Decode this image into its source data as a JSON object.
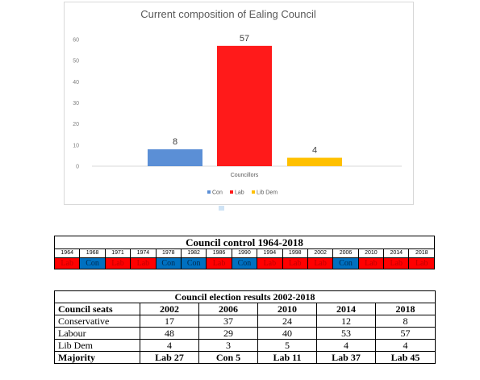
{
  "chart_data": {
    "type": "bar",
    "title": "Current composition of Ealing Council",
    "xlabel": "Councillors",
    "ylim": [
      0,
      60
    ],
    "yticks": [
      0,
      10,
      20,
      30,
      40,
      50,
      60
    ],
    "series": [
      {
        "name": "Con",
        "value": 8,
        "color": "#5b8fd6"
      },
      {
        "name": "Lab",
        "value": 57,
        "color": "#ff1a1a"
      },
      {
        "name": "Lib Dem",
        "value": 4,
        "color": "#ffc000"
      }
    ],
    "legend_position": "bottom"
  },
  "control": {
    "title": "Council control 1964-2018",
    "years": [
      "1964",
      "1968",
      "1971",
      "1974",
      "1978",
      "1982",
      "1986",
      "1990",
      "1994",
      "1998",
      "2002",
      "2006",
      "2010",
      "2014",
      "2018"
    ],
    "parties": [
      "Lab",
      "Con",
      "Lab",
      "Lab",
      "Con",
      "Con",
      "Lab",
      "Con",
      "Lab",
      "Lab",
      "Lab",
      "Con",
      "Lab",
      "Lab",
      "Lab"
    ]
  },
  "results": {
    "title": "Council election results 2002-2018",
    "header": [
      "Council seats",
      "2002",
      "2006",
      "2010",
      "2014",
      "2018"
    ],
    "rows": [
      [
        "Conservative",
        "17",
        "37",
        "24",
        "12",
        "8"
      ],
      [
        "Labour",
        "48",
        "29",
        "40",
        "53",
        "57"
      ],
      [
        "Lib Dem",
        "4",
        "3",
        "5",
        "4",
        "4"
      ]
    ],
    "majority": [
      "Majority",
      "Lab 27",
      "Con 5",
      "Lab 11",
      "Lab 37",
      "Lab 45"
    ]
  }
}
